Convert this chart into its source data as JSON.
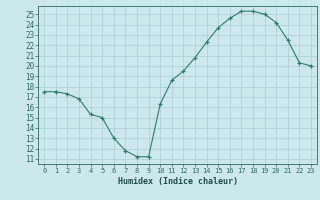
{
  "x": [
    0,
    1,
    2,
    3,
    4,
    5,
    6,
    7,
    8,
    9,
    10,
    11,
    12,
    13,
    14,
    15,
    16,
    17,
    18,
    19,
    20,
    21,
    22,
    23
  ],
  "y": [
    17.5,
    17.5,
    17.3,
    16.8,
    15.3,
    15.0,
    13.0,
    11.8,
    11.2,
    11.2,
    16.3,
    18.6,
    19.5,
    20.8,
    22.3,
    23.7,
    24.6,
    25.3,
    25.3,
    25.0,
    24.2,
    22.5,
    20.3,
    20.0
  ],
  "xlabel": "Humidex (Indice chaleur)",
  "xlim": [
    -0.5,
    23.5
  ],
  "ylim": [
    10.5,
    25.8
  ],
  "yticks": [
    11,
    12,
    13,
    14,
    15,
    16,
    17,
    18,
    19,
    20,
    21,
    22,
    23,
    24,
    25
  ],
  "xticks": [
    0,
    1,
    2,
    3,
    4,
    5,
    6,
    7,
    8,
    9,
    10,
    11,
    12,
    13,
    14,
    15,
    16,
    17,
    18,
    19,
    20,
    21,
    22,
    23
  ],
  "line_color": "#2e7d6e",
  "marker": "+",
  "bg_color": "#cde8ec",
  "grid_color": "#aacdd3",
  "tick_color": "#2e6b60",
  "label_color": "#1a4f47"
}
